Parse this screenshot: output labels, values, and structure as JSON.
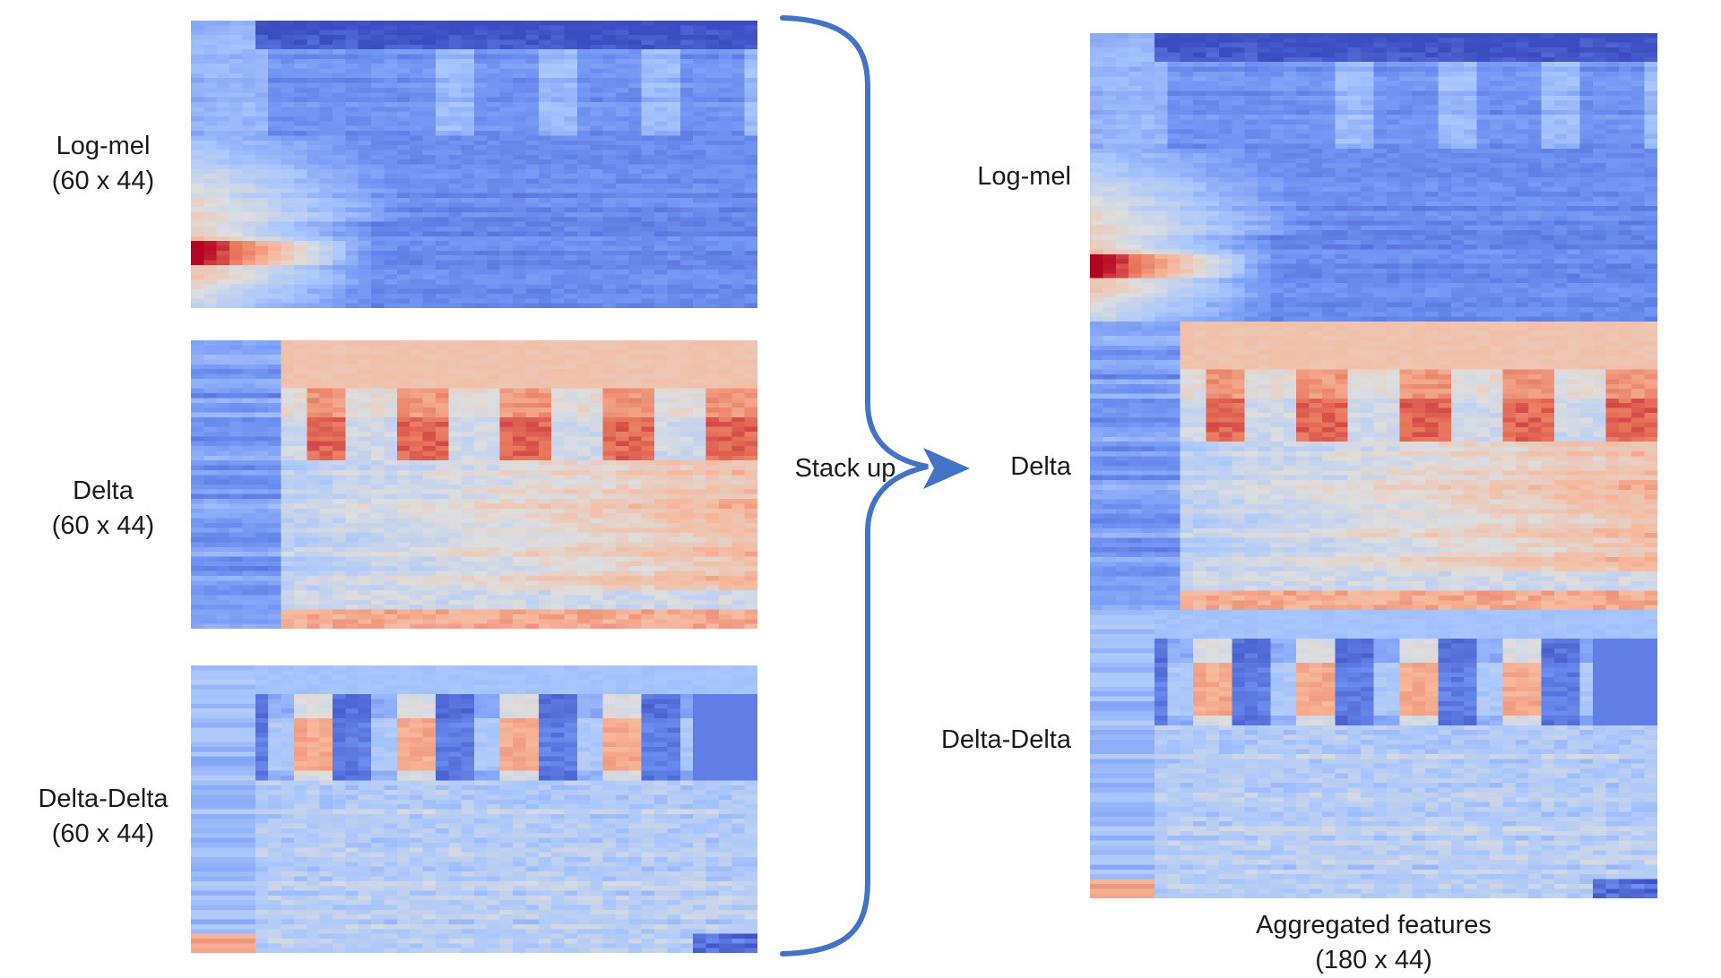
{
  "blocks": {
    "logmel": {
      "name": "Log-mel",
      "dims": "(60 x 44)"
    },
    "delta": {
      "name": "Delta",
      "dims": "(60 x 44)"
    },
    "deltadelta": {
      "name": "Delta-Delta",
      "dims": "(60 x 44)"
    }
  },
  "operation_label": "Stack up",
  "aggregated": {
    "labels": {
      "logmel": "Log-mel",
      "delta": "Delta",
      "deltadelta": "Delta-Delta"
    },
    "title": "Aggregated features",
    "dims": "(180 x 44)"
  },
  "colors": {
    "brace": "#4472c4",
    "colormap": [
      "#3b4cc0",
      "#6f92f3",
      "#aac7fd",
      "#dddddd",
      "#f7b89c",
      "#e7745b",
      "#b40426"
    ]
  }
}
